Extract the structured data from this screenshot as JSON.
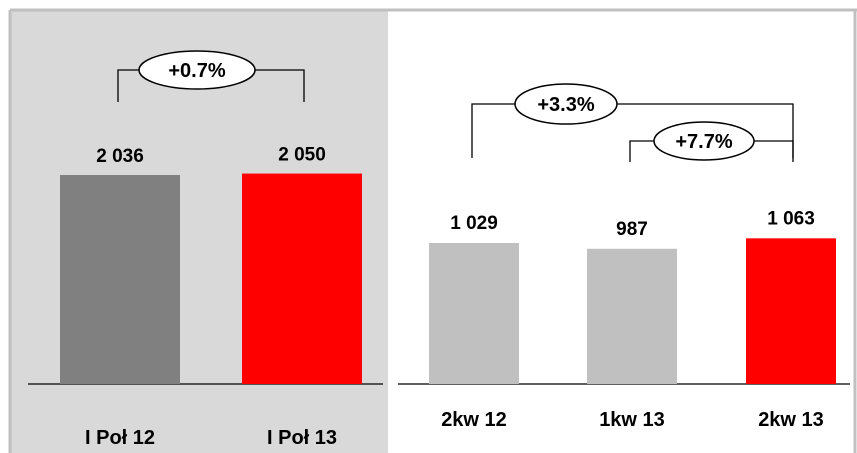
{
  "colors": {
    "panel_shade": "#d9d9d9",
    "frame": "#c0c0c0",
    "dark_gray": "#808080",
    "light_gray": "#c0c0c0",
    "red": "#ff0000"
  },
  "chart_data": [
    {
      "type": "bar",
      "categories": [
        "I Poł 12",
        "I Poł 13"
      ],
      "values": [
        2036,
        2050
      ],
      "value_labels": [
        "2 036",
        "2 050"
      ],
      "bar_colors": [
        "#808080",
        "#ff0000"
      ],
      "ylim": [
        0,
        2900
      ],
      "title": "",
      "xlabel": "",
      "ylabel": "",
      "grid": false,
      "annotations": [
        {
          "text": "+0.7%",
          "from": 0,
          "to": 1
        }
      ]
    },
    {
      "type": "bar",
      "categories": [
        "2kw 12",
        "1kw 13",
        "2kw 13"
      ],
      "values": [
        1029,
        987,
        1063
      ],
      "value_labels": [
        "1 029",
        "987",
        "1 063"
      ],
      "bar_colors": [
        "#c0c0c0",
        "#c0c0c0",
        "#ff0000"
      ],
      "ylim": [
        0,
        2900
      ],
      "title": "",
      "xlabel": "",
      "ylabel": "",
      "grid": false,
      "annotations": [
        {
          "text": "+3.3%",
          "from": 0,
          "to": 2
        },
        {
          "text": "+7.7%",
          "from": 1,
          "to": 2
        }
      ]
    }
  ]
}
